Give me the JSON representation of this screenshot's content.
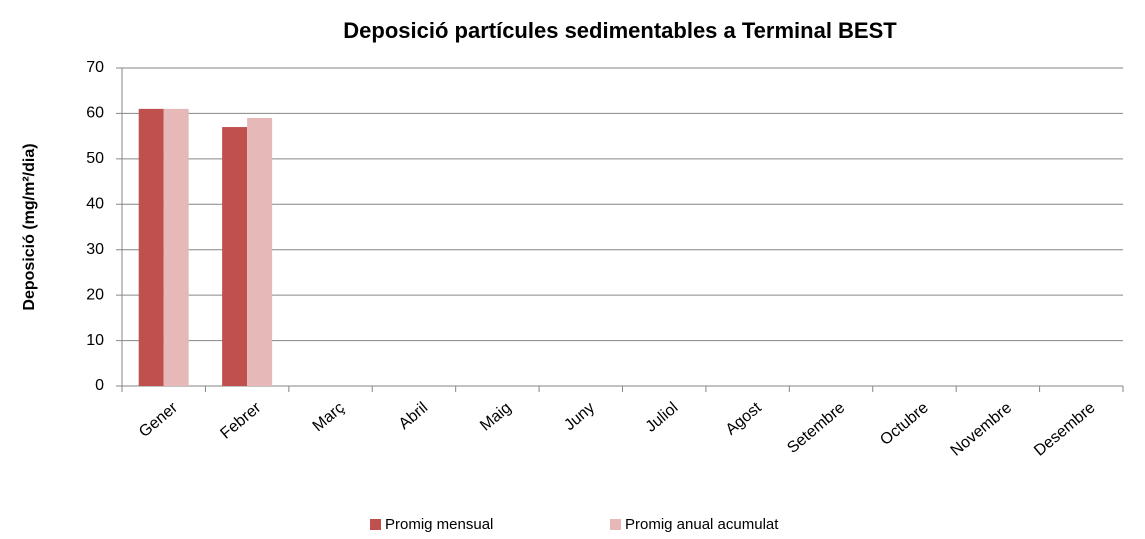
{
  "chart_data": {
    "type": "bar",
    "title": "Deposició partícules sedimentables a Terminal BEST",
    "y_label": "Deposició (mg/m²/dia)",
    "categories": [
      "Gener",
      "Febrer",
      "Març",
      "Abril",
      "Maig",
      "Juny",
      "Juliol",
      "Agost",
      "Setembre",
      "Octubre",
      "Novembre",
      "Desembre"
    ],
    "series": [
      {
        "name": "Promig mensual",
        "color": "#c0504d",
        "values": [
          61,
          57,
          null,
          null,
          null,
          null,
          null,
          null,
          null,
          null,
          null,
          null
        ]
      },
      {
        "name": "Promig anual acumulat",
        "color": "#e6b9b8",
        "values": [
          61,
          59,
          null,
          null,
          null,
          null,
          null,
          null,
          null,
          null,
          null,
          null
        ]
      }
    ],
    "ylim": [
      0,
      70
    ],
    "yticks": [
      0,
      10,
      20,
      30,
      40,
      50,
      60,
      70
    ],
    "grid": true,
    "legend": "bottom"
  }
}
